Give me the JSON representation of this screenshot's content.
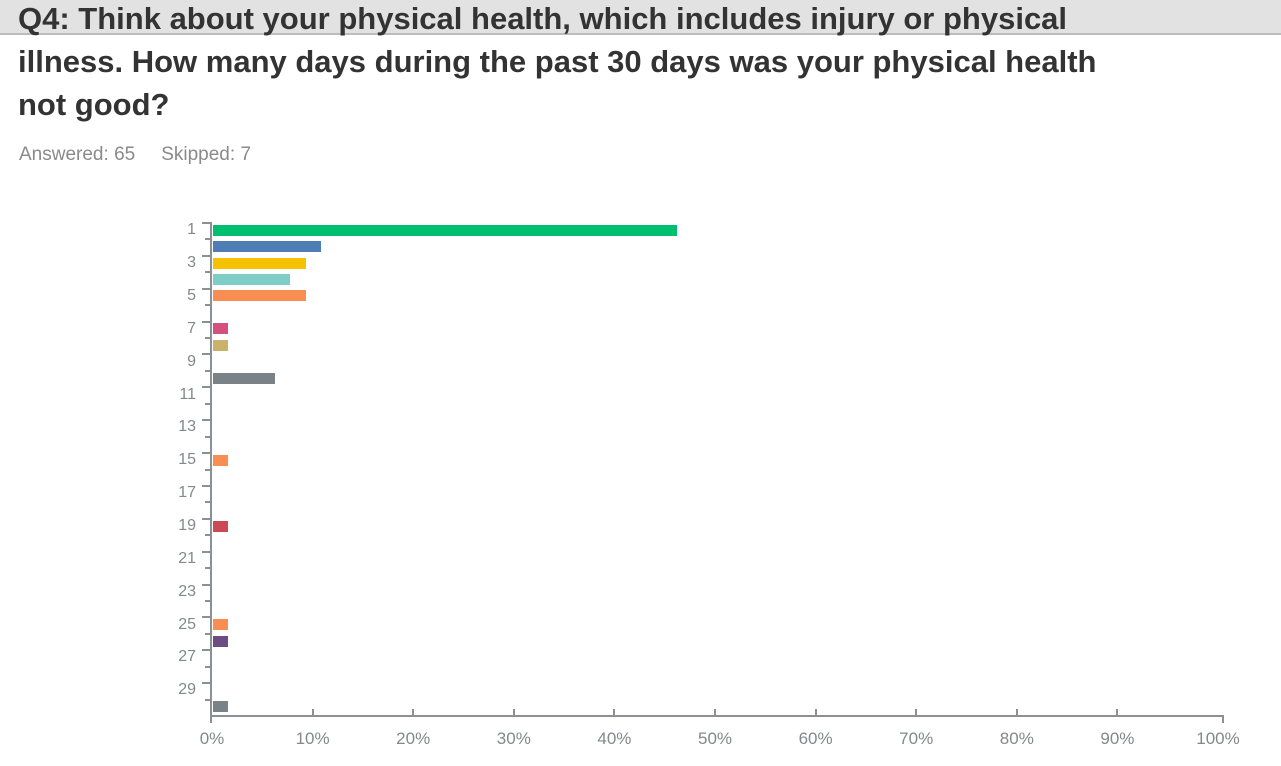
{
  "header": {
    "title_lines": [
      "Q4: Think about your physical health, which includes injury or physical",
      "illness. How many days during the past 30 days was your physical health",
      "not good?"
    ],
    "answered_label": "Answered:",
    "answered_value": "65",
    "skipped_label": "Skipped:",
    "skipped_value": "7"
  },
  "chart_data": {
    "type": "bar",
    "orientation": "horizontal",
    "title": "Q4: Think about your physical health, which includes injury or physical illness. How many days during the past 30 days was your physical health not good?",
    "x_axis": {
      "min": 0,
      "max": 100,
      "tick_step": 10,
      "tick_labels": [
        "0%",
        "10%",
        "20%",
        "30%",
        "40%",
        "50%",
        "60%",
        "70%",
        "80%",
        "90%",
        "100%"
      ]
    },
    "y_axis": {
      "num_rows": 30,
      "tick_labels": [
        "1",
        "3",
        "5",
        "7",
        "9",
        "11",
        "13",
        "15",
        "17",
        "19",
        "21",
        "23",
        "25",
        "27",
        "29"
      ]
    },
    "grid": false,
    "legend": false,
    "axis_color": "#8b9094",
    "label_color": "#84888c",
    "bars": [
      {
        "day": 1,
        "value_pct": 46.15,
        "color": "#00bf6f"
      },
      {
        "day": 2,
        "value_pct": 10.77,
        "color": "#4e7cb5"
      },
      {
        "day": 3,
        "value_pct": 9.23,
        "color": "#f5c100"
      },
      {
        "day": 4,
        "value_pct": 7.69,
        "color": "#7ecdc6"
      },
      {
        "day": 5,
        "value_pct": 9.23,
        "color": "#f98e52"
      },
      {
        "day": 7,
        "value_pct": 1.54,
        "color": "#d4517e"
      },
      {
        "day": 8,
        "value_pct": 1.54,
        "color": "#c9b36a"
      },
      {
        "day": 10,
        "value_pct": 6.15,
        "color": "#7a8287"
      },
      {
        "day": 15,
        "value_pct": 1.54,
        "color": "#f98e52"
      },
      {
        "day": 19,
        "value_pct": 1.54,
        "color": "#cb4a55"
      },
      {
        "day": 25,
        "value_pct": 1.54,
        "color": "#f98e52"
      },
      {
        "day": 26,
        "value_pct": 1.54,
        "color": "#6d4b85"
      },
      {
        "day": 30,
        "value_pct": 1.54,
        "color": "#7a8287"
      }
    ]
  }
}
